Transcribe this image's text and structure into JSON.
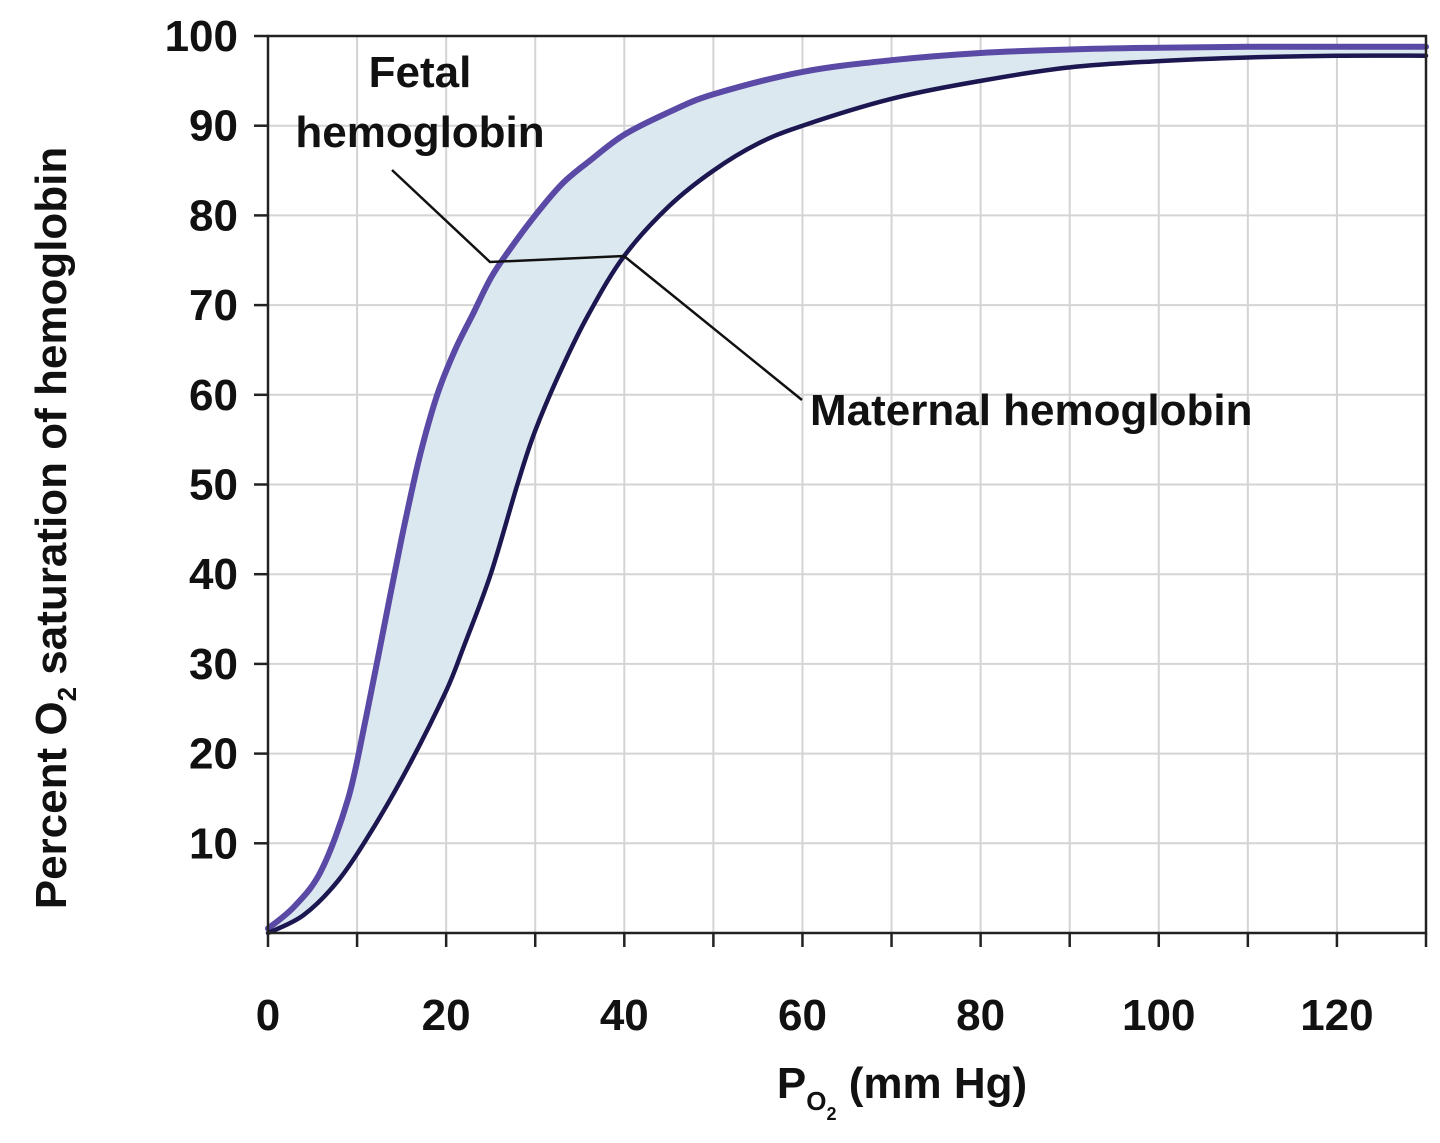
{
  "chart_data": {
    "type": "line",
    "xlabel": {
      "main": "P",
      "sub": "O",
      "subsub": "2",
      "rest": " (mm Hg)"
    },
    "ylabel": {
      "pre": "Percent O",
      "sub": "2",
      "post": " saturation of hemoglobin"
    },
    "xlim": [
      0,
      130
    ],
    "ylim": [
      0,
      100
    ],
    "x_ticks": [
      0,
      20,
      40,
      60,
      80,
      100,
      120
    ],
    "x_tick_labels": [
      "0",
      "20",
      "40",
      "60",
      "80",
      "100",
      "120"
    ],
    "x_minor_step": 10,
    "y_ticks": [
      10,
      20,
      30,
      40,
      50,
      60,
      70,
      80,
      90,
      100
    ],
    "y_tick_labels": [
      "10",
      "20",
      "30",
      "40",
      "50",
      "60",
      "70",
      "80",
      "90",
      "100"
    ],
    "grid": true,
    "fill_between": {
      "color": "#dce8f0"
    },
    "series": [
      {
        "name": "Fetal hemoglobin",
        "label_lines": [
          "Fetal",
          "hemoglobin"
        ],
        "color": "#5a4aa6",
        "x": [
          0,
          3,
          6,
          9,
          11,
          13,
          15,
          17,
          19,
          21,
          23,
          25,
          27,
          30,
          33,
          36,
          40,
          45,
          50,
          60,
          70,
          80,
          90,
          100,
          110,
          120,
          130
        ],
        "y": [
          0.5,
          3,
          7,
          15,
          24,
          34,
          44,
          53,
          60,
          65,
          69,
          73,
          76,
          80,
          83.5,
          86,
          89,
          91.5,
          93.5,
          96,
          97.3,
          98.1,
          98.5,
          98.7,
          98.8,
          98.8,
          98.8
        ]
      },
      {
        "name": "Maternal hemoglobin",
        "label_lines": [
          "Maternal hemoglobin"
        ],
        "color": "#1c1750",
        "x": [
          0,
          4,
          8,
          12,
          16,
          20,
          22,
          25,
          28,
          30,
          33,
          36,
          40,
          45,
          50,
          55,
          60,
          70,
          80,
          90,
          100,
          110,
          120,
          130
        ],
        "y": [
          0,
          2,
          6,
          12,
          19,
          27,
          32,
          40,
          50,
          56,
          63,
          69,
          75.5,
          81,
          85,
          88,
          90,
          93,
          95,
          96.5,
          97.2,
          97.6,
          97.8,
          97.8
        ]
      }
    ]
  }
}
